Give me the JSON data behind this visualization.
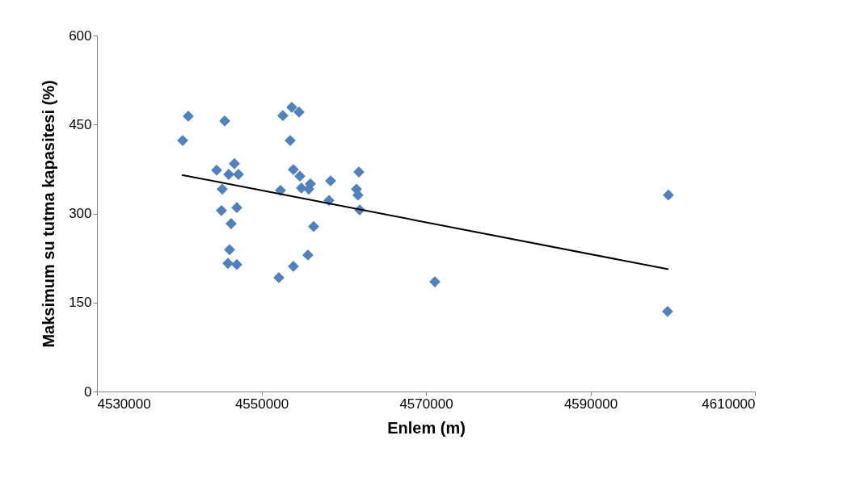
{
  "chart_data": {
    "type": "scatter",
    "xlabel": "Enlem (m)",
    "ylabel": "Maksimum su tutma kapasitesi (%)",
    "xlim": [
      4530000,
      4610000
    ],
    "xticks": [
      4530000,
      4550000,
      4570000,
      4590000,
      4610000
    ],
    "ylim": [
      0,
      600
    ],
    "yticks": [
      0,
      150,
      300,
      450,
      600
    ],
    "marker": "diamond",
    "series": [
      {
        "color": "#4f81bd",
        "x": [
          4540420,
          4541100,
          4545530,
          4544550,
          4546710,
          4546020,
          4547200,
          4545230,
          4545130,
          4547000,
          4546310,
          4546120,
          4545920,
          4547000,
          4552310,
          4552110,
          4553880,
          4555650,
          4556340,
          4552600,
          4553690,
          4554570,
          4553490,
          4553880,
          4554670,
          4554860,
          4555950,
          4555750,
          4558400,
          4558210,
          4561840,
          4561550,
          4561740,
          4561940,
          4571080,
          4599480,
          4599380
        ],
        "values": [
          423,
          464,
          456,
          373,
          384,
          366,
          366,
          341,
          305,
          310,
          283,
          239,
          216,
          214,
          339,
          192,
          211,
          230,
          278,
          465,
          479,
          471,
          423,
          374,
          363,
          343,
          350,
          341,
          355,
          322,
          370,
          341,
          331,
          306,
          185,
          331,
          135
        ]
      },
      {
        "type": "line",
        "color": "#000000",
        "line_style": "solid",
        "marker": "none",
        "x": [
          4540320,
          4599480
        ],
        "values": [
          365,
          206
        ]
      }
    ]
  }
}
